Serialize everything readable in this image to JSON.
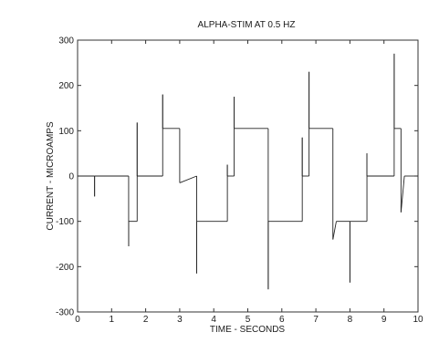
{
  "chart_data": {
    "type": "line",
    "title": "ALPHA-STIM AT 0.5 HZ",
    "xlabel": "TIME - SECONDS",
    "ylabel": "CURRENT - MICROAMPS",
    "xlim": [
      0,
      10
    ],
    "ylim": [
      -300,
      300
    ],
    "xticks": [
      0,
      1,
      2,
      3,
      4,
      5,
      6,
      7,
      8,
      9,
      10
    ],
    "yticks": [
      -300,
      -200,
      -100,
      0,
      100,
      200,
      300
    ],
    "grid": false,
    "series": [
      {
        "points": [
          [
            0,
            0
          ],
          [
            0.5,
            0
          ],
          [
            0.5,
            -45
          ],
          [
            0.5,
            0
          ],
          [
            1.5,
            0
          ],
          [
            1.5,
            -155
          ],
          [
            1.5,
            -100
          ],
          [
            1.75,
            -100
          ],
          [
            1.75,
            118
          ],
          [
            1.75,
            0
          ],
          [
            2.5,
            0
          ],
          [
            2.5,
            180
          ],
          [
            2.5,
            105
          ],
          [
            3.0,
            105
          ],
          [
            3.0,
            -15
          ],
          [
            3.5,
            0
          ],
          [
            3.5,
            -215
          ],
          [
            3.5,
            -100
          ],
          [
            4.4,
            -100
          ],
          [
            4.4,
            25
          ],
          [
            4.4,
            0
          ],
          [
            4.6,
            0
          ],
          [
            4.6,
            175
          ],
          [
            4.6,
            105
          ],
          [
            5.6,
            105
          ],
          [
            5.6,
            -250
          ],
          [
            5.6,
            -100
          ],
          [
            6.6,
            -100
          ],
          [
            6.6,
            85
          ],
          [
            6.6,
            0
          ],
          [
            6.8,
            0
          ],
          [
            6.8,
            230
          ],
          [
            6.8,
            105
          ],
          [
            7.5,
            105
          ],
          [
            7.5,
            -140
          ],
          [
            7.6,
            -100
          ],
          [
            8.0,
            -100
          ],
          [
            8.0,
            -235
          ],
          [
            8.0,
            -100
          ],
          [
            8.5,
            -100
          ],
          [
            8.5,
            50
          ],
          [
            8.5,
            0
          ],
          [
            9.3,
            0
          ],
          [
            9.3,
            270
          ],
          [
            9.3,
            105
          ],
          [
            9.5,
            105
          ],
          [
            9.5,
            -80
          ],
          [
            9.6,
            0
          ],
          [
            10,
            0
          ]
        ]
      }
    ]
  }
}
